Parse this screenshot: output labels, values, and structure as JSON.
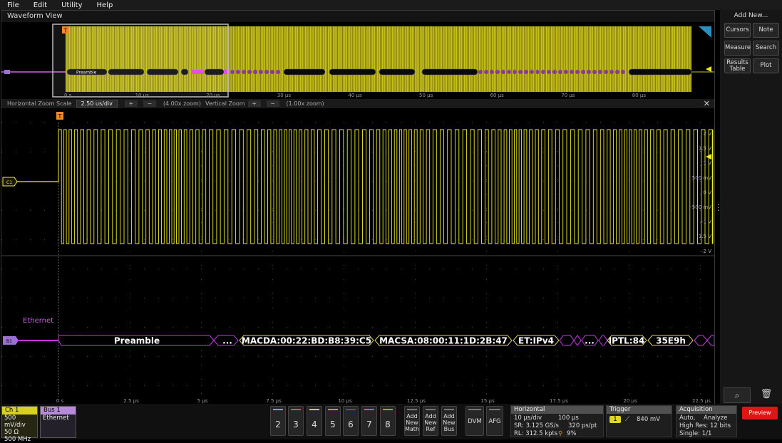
{
  "menu": [
    "File",
    "Edit",
    "Utility",
    "Help"
  ],
  "waveform_view": {
    "title": "Waveform View",
    "overview_time_labels": [
      "0 s",
      "10 µs",
      "20 µs",
      "30 µs",
      "40 µs",
      "50 µs",
      "60 µs",
      "70 µs",
      "80 µs"
    ],
    "overview_bus_label": "Preamble",
    "trigger_marker": "T",
    "zoom_bar": {
      "h_label": "Horizontal Zoom Scale",
      "h_value": "2.50 us/div",
      "h_zoom": "(4.00x zoom)",
      "v_label": "Vertical Zoom",
      "v_zoom": "(1.00x zoom)"
    },
    "channel_marker": "C1",
    "volt_labels": [
      "2 V",
      "1.5 V",
      "1 V",
      "500 mV",
      "0 V",
      "-500 mV",
      "-1 V",
      "-1.5 V",
      "-2 V"
    ],
    "bus_marker": "B1",
    "bus_name": "Ethernet",
    "bus_packets": {
      "preamble": "Preamble",
      "ellipsis1": "...",
      "macda": "MACDA:00:22:BD:B8:39:C5",
      "macsa": "MACSA:08:00:11:1D:2B:47",
      "et": "ET:IPv4",
      "ellipsis2": "...",
      "iptl": "IPTL:84",
      "hex": "35E9h"
    },
    "time_labels": [
      "0 s",
      "2.5 µs",
      "5 µs",
      "7.5 µs",
      "10 µs",
      "12.5 µs",
      "15 µs",
      "17.5 µs",
      "20 µs",
      "22.5 µs"
    ]
  },
  "right_panel": {
    "header": "Add New...",
    "cursors": "Cursors",
    "note": "Note",
    "measure": "Measure",
    "search": "Search",
    "results_line1": "Results",
    "results_line2": "Table",
    "plot": "Plot"
  },
  "bottom": {
    "ch1": {
      "title": "Ch 1",
      "l1": "500 mV/div",
      "l2": "50 Ω",
      "l3": "500 MHz"
    },
    "bus1": {
      "title": "Bus 1",
      "l1": "Ethernet"
    },
    "channels": [
      {
        "n": "2",
        "color": "#3fc7b3"
      },
      {
        "n": "3",
        "color": "#e04a6a"
      },
      {
        "n": "4",
        "color": "#c6d63a"
      },
      {
        "n": "5",
        "color": "#f08a2a"
      },
      {
        "n": "6",
        "color": "#3a4fd6"
      },
      {
        "n": "7",
        "color": "#d04fa0"
      },
      {
        "n": "8",
        "color": "#3fc76a"
      }
    ],
    "add_math": [
      "Add",
      "New",
      "Math"
    ],
    "add_ref": [
      "Add",
      "New",
      "Ref"
    ],
    "add_bus": [
      "Add",
      "New",
      "Bus"
    ],
    "dvm": "DVM",
    "afg": "AFG",
    "horizontal": {
      "title": "Horizontal",
      "a1": "10 µs/div",
      "a2": "100 µs",
      "b1": "SR: 3.125 GS/s",
      "b2": "320 ps/pt",
      "c1": "RL: 312.5 kpts",
      "c2": "9%"
    },
    "trigger": {
      "title": "Trigger",
      "source": "1",
      "level": "840 mV"
    },
    "acquisition": {
      "title": "Acquisition",
      "a1": "Auto,",
      "a2": "Analyze",
      "b1": "High Res: 12 bits",
      "c1": "Single: 1/1"
    },
    "preview": "Preview"
  },
  "colors": {
    "ch1": "#f0f020",
    "bus": "#c040e0",
    "preview": "#e01515"
  }
}
